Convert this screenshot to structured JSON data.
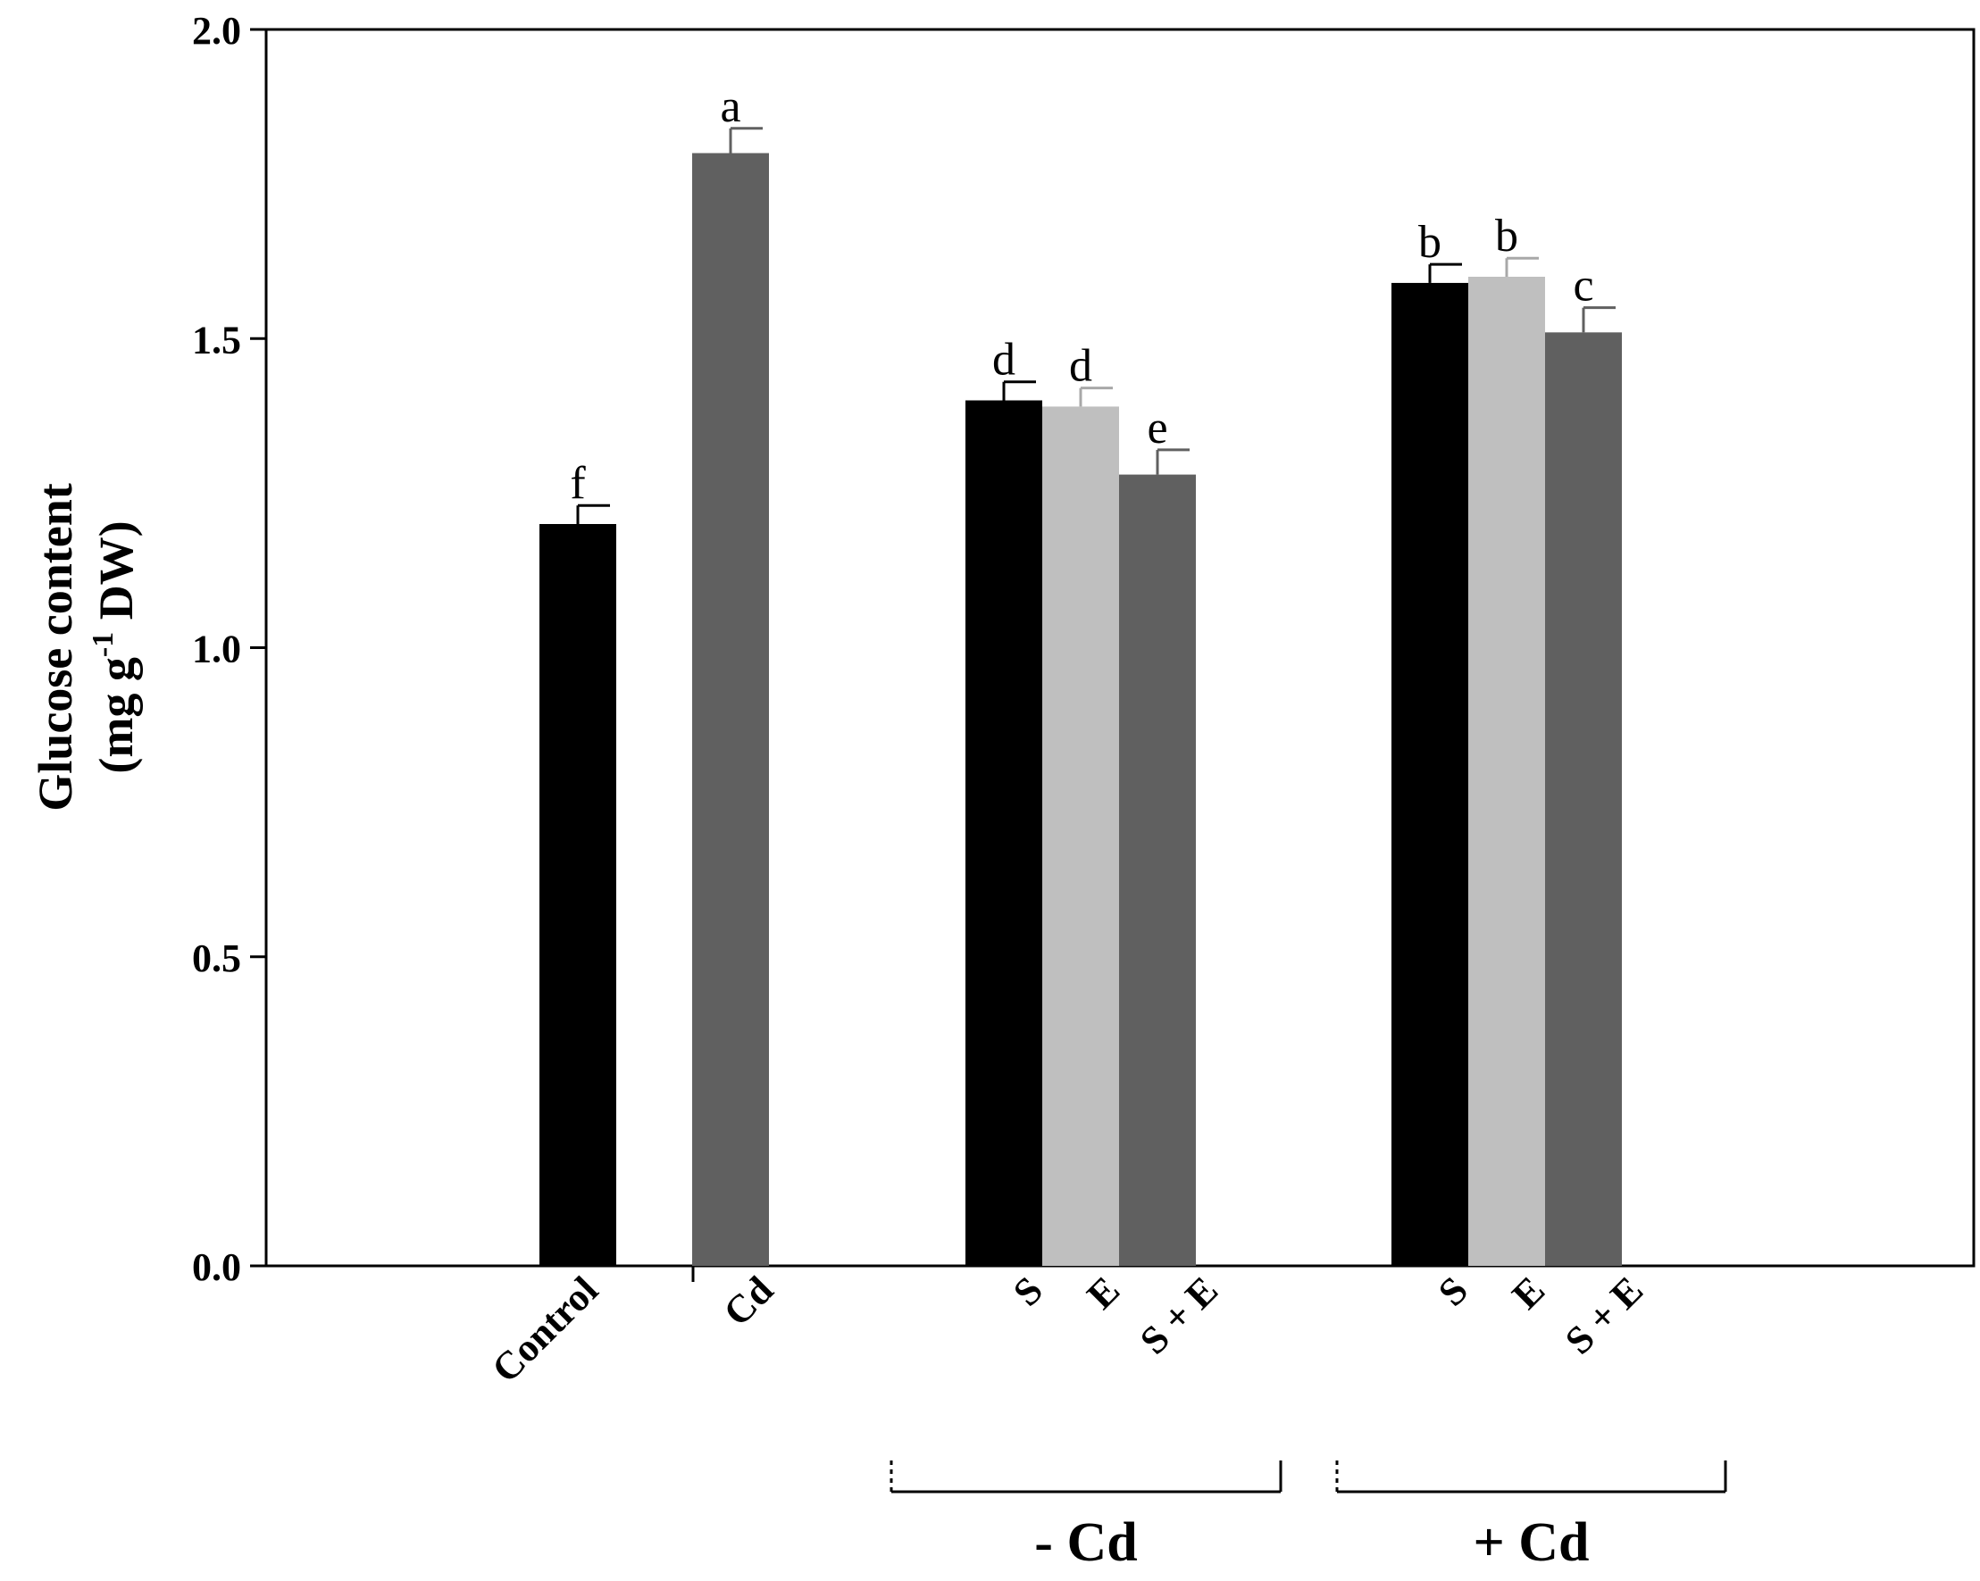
{
  "chart_data": {
    "type": "bar",
    "title": "",
    "ylabel_line1": "Glucose content",
    "ylabel_line2_prefix": "(mg g",
    "ylabel_line2_sup": "-1",
    "ylabel_line2_suffix": " DW)",
    "ylim": [
      0,
      2.0
    ],
    "yticks": [
      "0.0",
      "0.5",
      "1.0",
      "1.5",
      "2.0"
    ],
    "legend": "none",
    "grid": false,
    "bars": [
      {
        "category": "Control",
        "value": 1.2,
        "error": 0.03,
        "significance": "f",
        "color": "#000000"
      },
      {
        "category": "Cd",
        "value": 1.8,
        "error": 0.04,
        "significance": "a",
        "color": "#606060"
      },
      {
        "category": "S",
        "value": 1.4,
        "error": 0.03,
        "significance": "d",
        "color": "#000000"
      },
      {
        "category": "E",
        "value": 1.39,
        "error": 0.03,
        "significance": "d",
        "color": "#bfbfbf"
      },
      {
        "category": "S + E",
        "value": 1.28,
        "error": 0.04,
        "significance": "e",
        "color": "#606060"
      },
      {
        "category": "S",
        "value": 1.59,
        "error": 0.03,
        "significance": "b",
        "color": "#000000"
      },
      {
        "category": "E",
        "value": 1.6,
        "error": 0.03,
        "significance": "b",
        "color": "#bfbfbf"
      },
      {
        "category": "S + E",
        "value": 1.51,
        "error": 0.04,
        "significance": "c",
        "color": "#606060"
      }
    ],
    "groups": [
      {
        "label": "- Cd",
        "bars": [
          2,
          3,
          4
        ]
      },
      {
        "label": "+ Cd",
        "bars": [
          5,
          6,
          7
        ]
      }
    ]
  }
}
